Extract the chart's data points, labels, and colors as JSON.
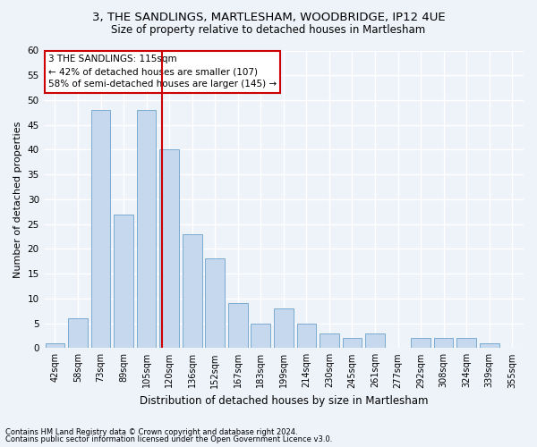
{
  "title1": "3, THE SANDLINGS, MARTLESHAM, WOODBRIDGE, IP12 4UE",
  "title2": "Size of property relative to detached houses in Martlesham",
  "xlabel": "Distribution of detached houses by size in Martlesham",
  "ylabel": "Number of detached properties",
  "categories": [
    "42sqm",
    "58sqm",
    "73sqm",
    "89sqm",
    "105sqm",
    "120sqm",
    "136sqm",
    "152sqm",
    "167sqm",
    "183sqm",
    "199sqm",
    "214sqm",
    "230sqm",
    "245sqm",
    "261sqm",
    "277sqm",
    "292sqm",
    "308sqm",
    "324sqm",
    "339sqm",
    "355sqm"
  ],
  "values": [
    1,
    6,
    48,
    27,
    48,
    40,
    23,
    18,
    9,
    5,
    8,
    5,
    3,
    2,
    3,
    0,
    2,
    2,
    2,
    1,
    0
  ],
  "bar_color": "#c5d8ee",
  "bar_edge_color": "#7aabcf",
  "bar_width": 0.85,
  "ylim": [
    0,
    60
  ],
  "yticks": [
    0,
    5,
    10,
    15,
    20,
    25,
    30,
    35,
    40,
    45,
    50,
    55,
    60
  ],
  "red_line_x": 4.67,
  "annotation_title": "3 THE SANDLINGS: 115sqm",
  "annotation_line1": "← 42% of detached houses are smaller (107)",
  "annotation_line2": "58% of semi-detached houses are larger (145) →",
  "footer1": "Contains HM Land Registry data © Crown copyright and database right 2024.",
  "footer2": "Contains public sector information licensed under the Open Government Licence v3.0.",
  "bg_color": "#eef2f9",
  "grid_color": "#ffffff",
  "annotation_box_color": "#ffffff",
  "annotation_box_edge": "#cc0000",
  "red_line_color": "#cc0000",
  "title1_fontsize": 9.5,
  "title2_fontsize": 8.5,
  "ylabel_fontsize": 8,
  "xlabel_fontsize": 8.5,
  "tick_fontsize": 7,
  "ann_fontsize": 7.5,
  "footer_fontsize": 6.0
}
